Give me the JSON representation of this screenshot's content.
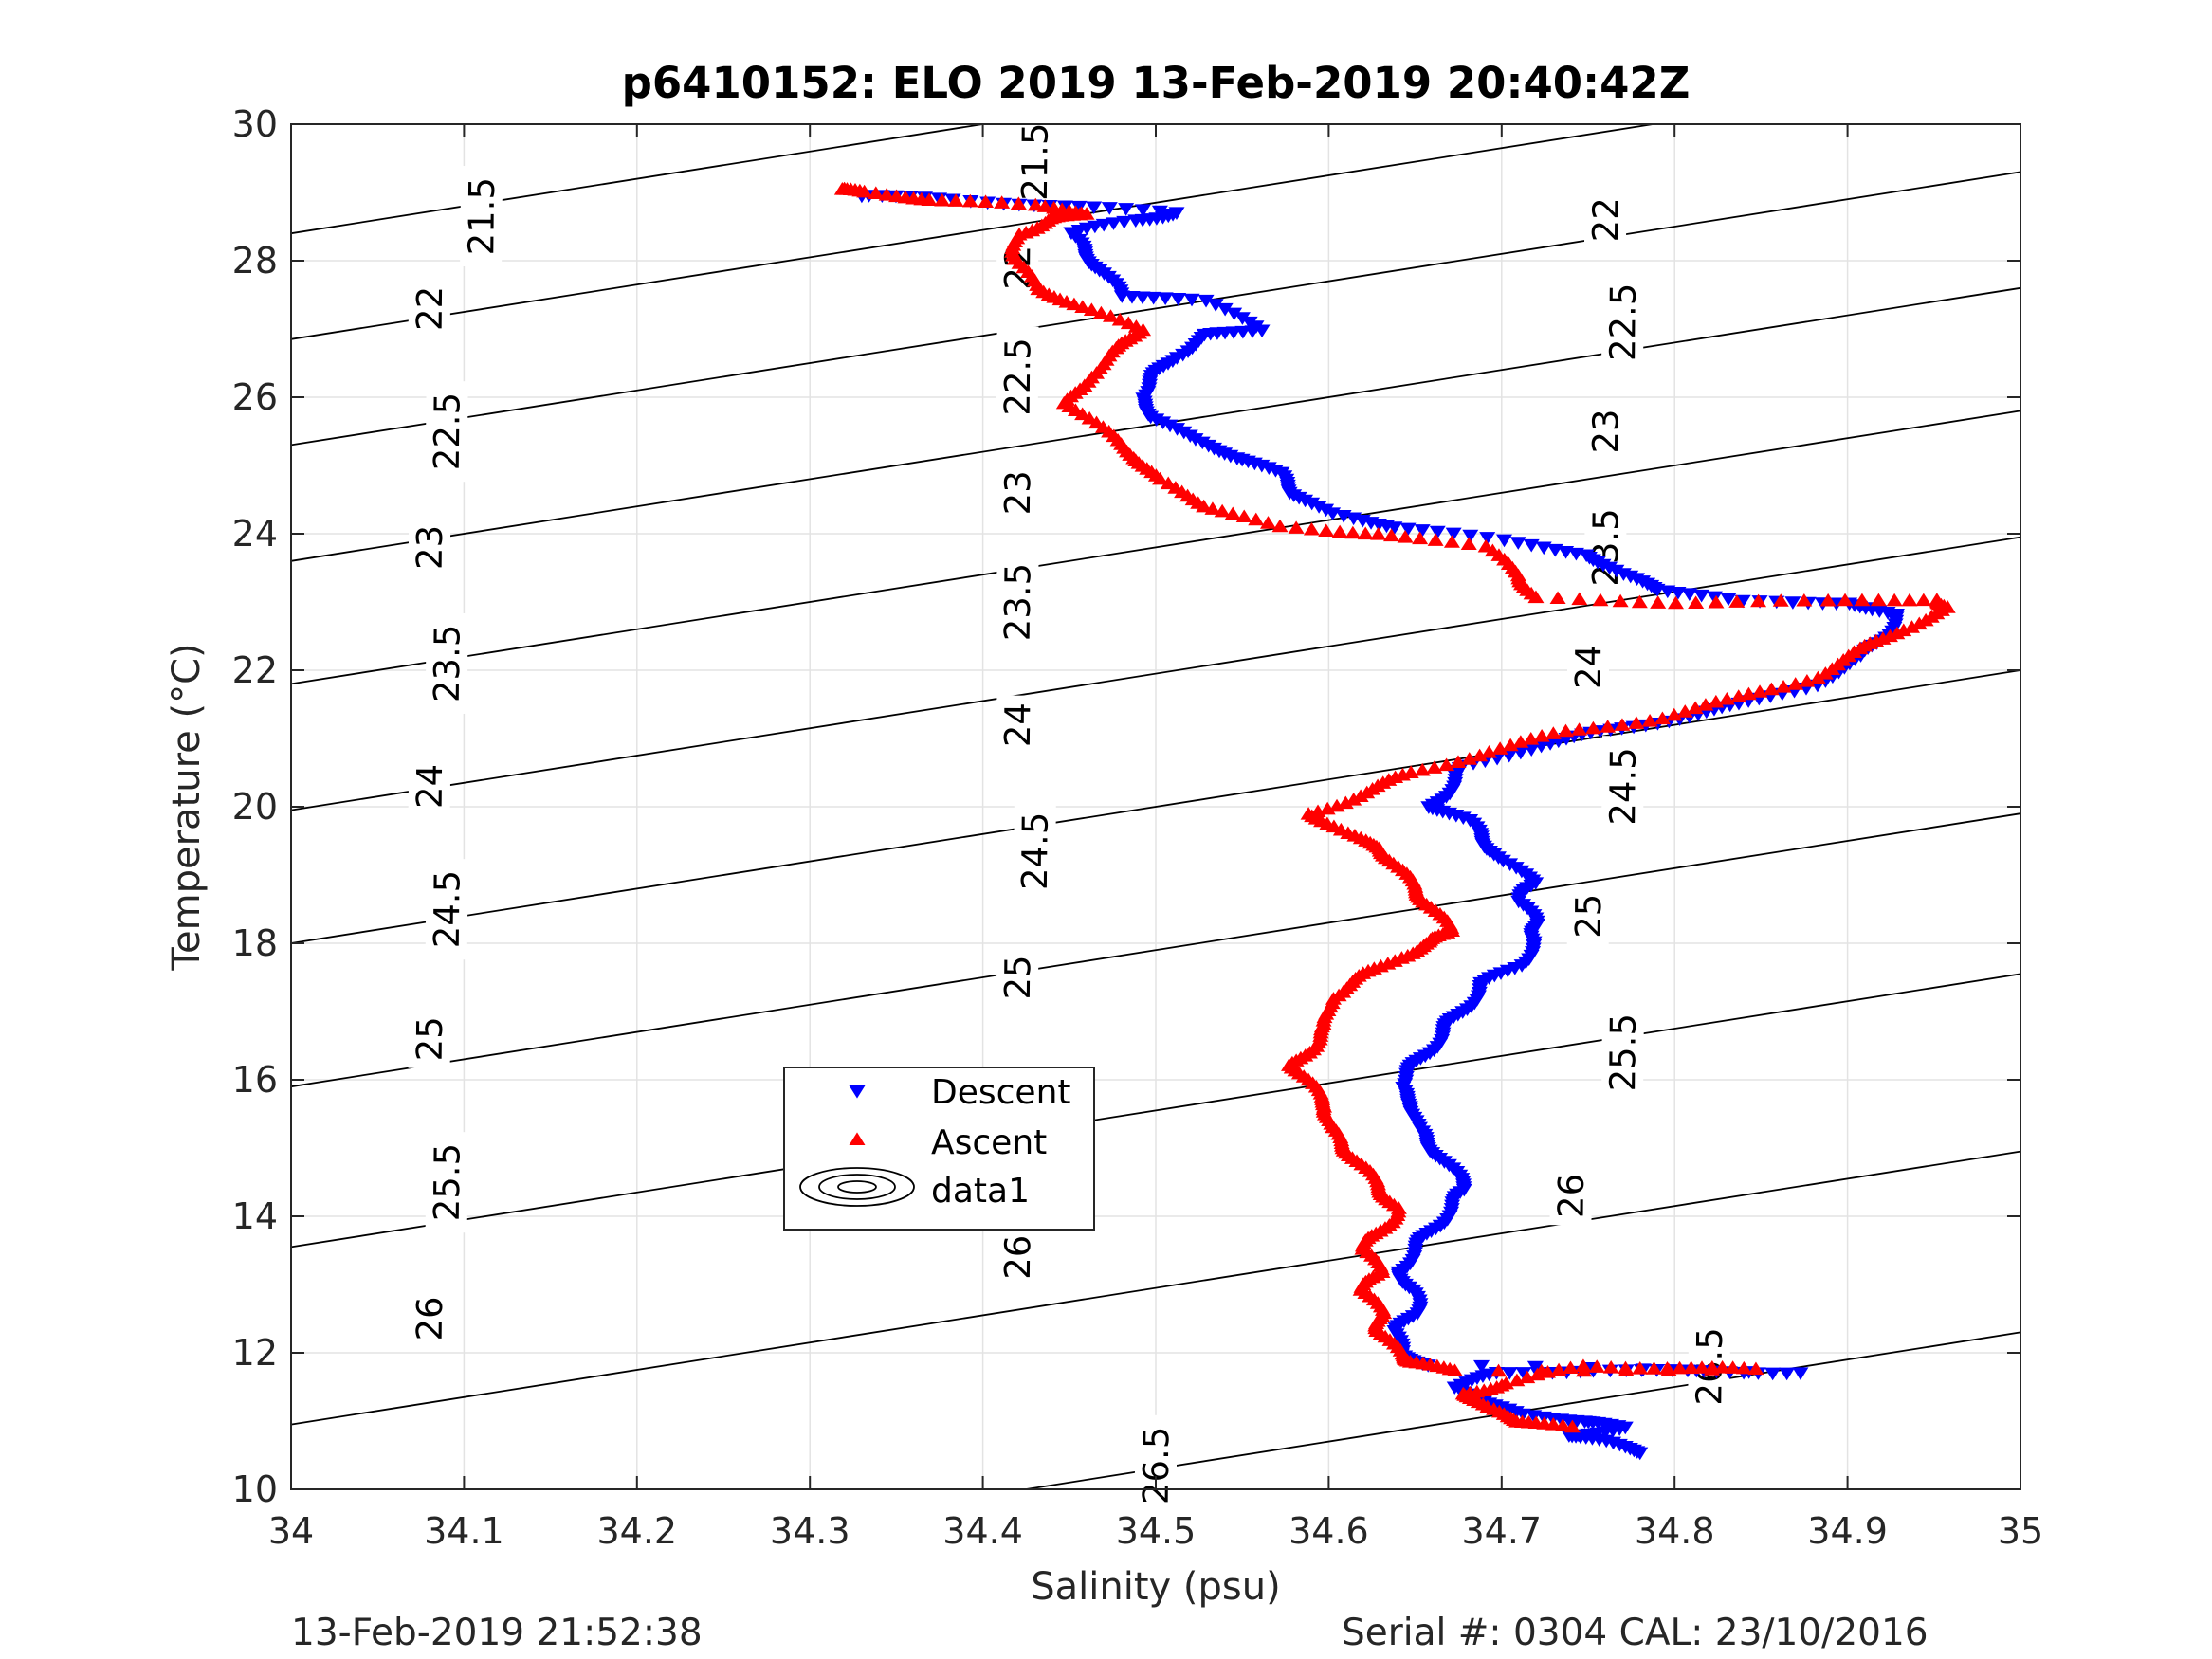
{
  "chart_data": {
    "type": "scatter",
    "title": "p6410152: ELO 2019 13-Feb-2019 20:40:42Z",
    "xlabel": "Salinity (psu)",
    "ylabel": "Temperature (°C)",
    "xlim": [
      34,
      35
    ],
    "ylim": [
      10,
      30
    ],
    "xticks": [
      "34",
      "34.1",
      "34.2",
      "34.3",
      "34.4",
      "34.5",
      "34.6",
      "34.7",
      "34.8",
      "34.9",
      "35"
    ],
    "yticks": [
      "10",
      "12",
      "14",
      "16",
      "18",
      "20",
      "22",
      "24",
      "26",
      "28",
      "30"
    ],
    "grid": true,
    "legend_position": "inside-lower-left",
    "legend": [
      "Descent",
      "Ascent",
      "data1"
    ],
    "density_contours": {
      "name": "data1",
      "levels": [
        "21.5",
        "22",
        "22.5",
        "23",
        "23.5",
        "24",
        "24.5",
        "25",
        "25.5",
        "26",
        "26.5"
      ]
    },
    "series": [
      {
        "name": "Descent",
        "marker": "down-triangle",
        "color": "#0000ff",
        "points": [
          [
            34.78,
            10.55
          ],
          [
            34.76,
            10.7
          ],
          [
            34.74,
            10.8
          ],
          [
            34.77,
            10.9
          ],
          [
            34.75,
            11.0
          ],
          [
            34.71,
            11.1
          ],
          [
            34.69,
            11.3
          ],
          [
            34.67,
            11.5
          ],
          [
            34.7,
            11.7
          ],
          [
            34.75,
            11.75
          ],
          [
            34.82,
            11.72
          ],
          [
            34.87,
            11.72
          ],
          [
            34.66,
            11.8
          ],
          [
            34.64,
            12.0
          ],
          [
            34.64,
            12.3
          ],
          [
            34.65,
            12.6
          ],
          [
            34.65,
            12.9
          ],
          [
            34.64,
            13.2
          ],
          [
            34.65,
            13.5
          ],
          [
            34.66,
            13.8
          ],
          [
            34.67,
            14.1
          ],
          [
            34.68,
            14.4
          ],
          [
            34.67,
            14.7
          ],
          [
            34.66,
            15.0
          ],
          [
            34.65,
            15.3
          ],
          [
            34.65,
            15.6
          ],
          [
            34.64,
            15.9
          ],
          [
            34.65,
            16.2
          ],
          [
            34.66,
            16.5
          ],
          [
            34.67,
            16.8
          ],
          [
            34.68,
            17.1
          ],
          [
            34.69,
            17.4
          ],
          [
            34.71,
            17.7
          ],
          [
            34.72,
            18.0
          ],
          [
            34.72,
            18.3
          ],
          [
            34.71,
            18.6
          ],
          [
            34.72,
            18.9
          ],
          [
            34.7,
            19.2
          ],
          [
            34.69,
            19.5
          ],
          [
            34.68,
            19.8
          ],
          [
            34.66,
            20.0
          ],
          [
            34.67,
            20.3
          ],
          [
            34.68,
            20.6
          ],
          [
            34.72,
            20.9
          ],
          [
            34.76,
            21.1
          ],
          [
            34.8,
            21.3
          ],
          [
            34.84,
            21.5
          ],
          [
            34.88,
            21.8
          ],
          [
            34.91,
            22.2
          ],
          [
            34.92,
            22.5
          ],
          [
            34.93,
            22.8
          ],
          [
            34.9,
            23.0
          ],
          [
            34.84,
            23.0
          ],
          [
            34.79,
            23.2
          ],
          [
            34.77,
            23.4
          ],
          [
            34.75,
            23.7
          ],
          [
            34.7,
            23.9
          ],
          [
            34.64,
            24.1
          ],
          [
            34.6,
            24.3
          ],
          [
            34.58,
            24.6
          ],
          [
            34.57,
            24.9
          ],
          [
            34.55,
            25.1
          ],
          [
            34.52,
            25.4
          ],
          [
            34.5,
            25.7
          ],
          [
            34.49,
            26.0
          ],
          [
            34.5,
            26.3
          ],
          [
            34.51,
            26.6
          ],
          [
            34.53,
            26.9
          ],
          [
            34.56,
            27.0
          ],
          [
            34.53,
            27.4
          ],
          [
            34.48,
            27.5
          ],
          [
            34.47,
            27.8
          ],
          [
            34.46,
            28.1
          ],
          [
            34.45,
            28.4
          ],
          [
            34.49,
            28.6
          ],
          [
            34.51,
            28.7
          ],
          [
            34.45,
            28.8
          ],
          [
            34.38,
            28.9
          ],
          [
            34.33,
            28.95
          ]
        ]
      },
      {
        "name": "Ascent",
        "marker": "up-triangle",
        "color": "#ff0000",
        "points": [
          [
            34.74,
            10.9
          ],
          [
            34.71,
            11.0
          ],
          [
            34.69,
            11.2
          ],
          [
            34.68,
            11.4
          ],
          [
            34.7,
            11.55
          ],
          [
            34.75,
            11.8
          ],
          [
            34.8,
            11.78
          ],
          [
            34.85,
            11.75
          ],
          [
            34.67,
            11.75
          ],
          [
            34.65,
            11.85
          ],
          [
            34.64,
            12.0
          ],
          [
            34.63,
            12.3
          ],
          [
            34.63,
            12.6
          ],
          [
            34.62,
            12.9
          ],
          [
            34.63,
            13.2
          ],
          [
            34.62,
            13.5
          ],
          [
            34.63,
            13.8
          ],
          [
            34.64,
            14.1
          ],
          [
            34.63,
            14.4
          ],
          [
            34.62,
            14.7
          ],
          [
            34.61,
            15.0
          ],
          [
            34.6,
            15.3
          ],
          [
            34.6,
            15.6
          ],
          [
            34.59,
            15.9
          ],
          [
            34.58,
            16.2
          ],
          [
            34.59,
            16.5
          ],
          [
            34.6,
            16.8
          ],
          [
            34.6,
            17.2
          ],
          [
            34.62,
            17.5
          ],
          [
            34.64,
            17.8
          ],
          [
            34.66,
            18.0
          ],
          [
            34.67,
            18.2
          ],
          [
            34.66,
            18.5
          ],
          [
            34.65,
            18.8
          ],
          [
            34.64,
            19.1
          ],
          [
            34.63,
            19.4
          ],
          [
            34.61,
            19.6
          ],
          [
            34.59,
            19.9
          ],
          [
            34.62,
            20.2
          ],
          [
            34.65,
            20.5
          ],
          [
            34.69,
            20.8
          ],
          [
            34.74,
            21.1
          ],
          [
            34.79,
            21.3
          ],
          [
            34.84,
            21.6
          ],
          [
            34.88,
            21.9
          ],
          [
            34.91,
            22.3
          ],
          [
            34.93,
            22.6
          ],
          [
            34.96,
            22.9
          ],
          [
            34.95,
            23.05
          ],
          [
            34.89,
            23.0
          ],
          [
            34.8,
            23.0
          ],
          [
            34.72,
            23.05
          ],
          [
            34.71,
            23.4
          ],
          [
            34.69,
            23.8
          ],
          [
            34.63,
            24.0
          ],
          [
            34.57,
            24.1
          ],
          [
            34.53,
            24.4
          ],
          [
            34.5,
            24.8
          ],
          [
            34.49,
            25.1
          ],
          [
            34.47,
            25.5
          ],
          [
            34.45,
            25.9
          ],
          [
            34.46,
            26.3
          ],
          [
            34.48,
            26.7
          ],
          [
            34.49,
            27.0
          ],
          [
            34.46,
            27.3
          ],
          [
            34.43,
            27.6
          ],
          [
            34.42,
            28.0
          ],
          [
            34.42,
            28.4
          ],
          [
            34.44,
            28.6
          ],
          [
            34.46,
            28.7
          ],
          [
            34.43,
            28.8
          ],
          [
            34.37,
            28.9
          ],
          [
            34.33,
            29.0
          ],
          [
            34.32,
            29.05
          ]
        ]
      }
    ],
    "contour_labels": [
      {
        "text": "21.5",
        "s": 34.11,
        "t": 28.65
      },
      {
        "text": "21.5",
        "s": 34.43,
        "t": 29.45
      },
      {
        "text": "22",
        "s": 34.08,
        "t": 27.3
      },
      {
        "text": "22",
        "s": 34.42,
        "t": 27.9
      },
      {
        "text": "22",
        "s": 34.76,
        "t": 28.6
      },
      {
        "text": "22.5",
        "s": 34.09,
        "t": 25.5
      },
      {
        "text": "22.5",
        "s": 34.42,
        "t": 26.3
      },
      {
        "text": "22.5",
        "s": 34.77,
        "t": 27.1
      },
      {
        "text": "23",
        "s": 34.08,
        "t": 23.8
      },
      {
        "text": "23",
        "s": 34.42,
        "t": 24.6
      },
      {
        "text": "23",
        "s": 34.76,
        "t": 25.5
      },
      {
        "text": "23.5",
        "s": 34.09,
        "t": 22.1
      },
      {
        "text": "23.5",
        "s": 34.42,
        "t": 23.0
      },
      {
        "text": "23.5",
        "s": 34.76,
        "t": 23.8
      },
      {
        "text": "24",
        "s": 34.08,
        "t": 20.3
      },
      {
        "text": "24",
        "s": 34.42,
        "t": 21.2
      },
      {
        "text": "24",
        "s": 34.75,
        "t": 22.05
      },
      {
        "text": "24.5",
        "s": 34.09,
        "t": 18.5
      },
      {
        "text": "24.5",
        "s": 34.43,
        "t": 19.35
      },
      {
        "text": "24.5",
        "s": 34.77,
        "t": 20.3
      },
      {
        "text": "25",
        "s": 34.08,
        "t": 16.6
      },
      {
        "text": "25",
        "s": 34.42,
        "t": 17.5
      },
      {
        "text": "25",
        "s": 34.75,
        "t": 18.4
      },
      {
        "text": "25.5",
        "s": 34.09,
        "t": 14.5
      },
      {
        "text": "25.5",
        "s": 34.43,
        "t": 15.5
      },
      {
        "text": "25.5",
        "s": 34.77,
        "t": 16.4
      },
      {
        "text": "26",
        "s": 34.08,
        "t": 12.5
      },
      {
        "text": "26",
        "s": 34.42,
        "t": 13.4
      },
      {
        "text": "26",
        "s": 34.74,
        "t": 14.3
      },
      {
        "text": "26.5",
        "s": 34.5,
        "t": 10.35
      },
      {
        "text": "26.5",
        "s": 34.82,
        "t": 11.8
      }
    ]
  },
  "footer": {
    "timestamp": "13-Feb-2019 21:52:38",
    "serial": "Serial #: 0304  CAL: 23/10/2016"
  }
}
